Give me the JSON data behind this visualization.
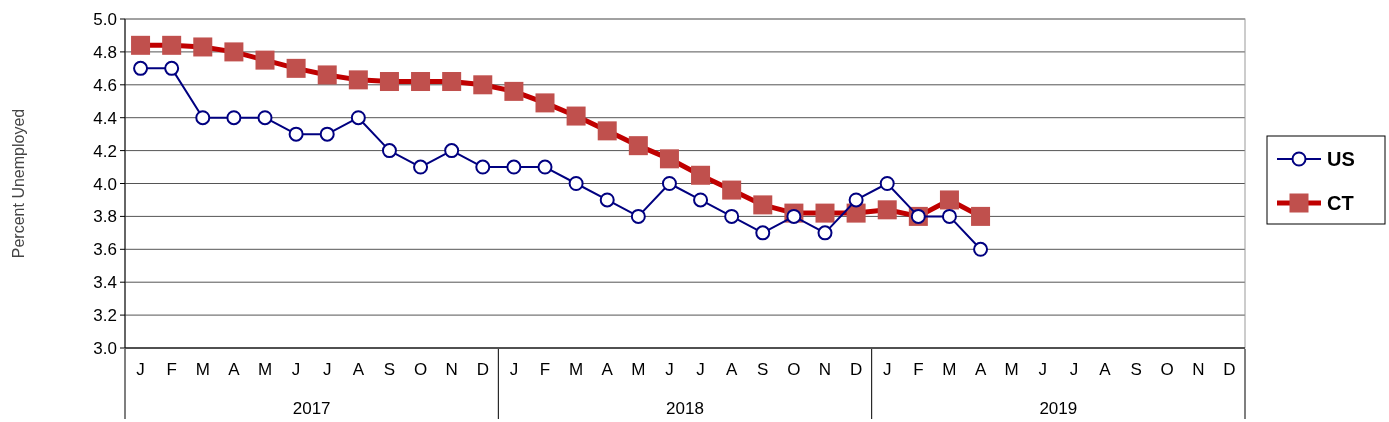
{
  "chart_data": {
    "type": "line",
    "ylabel": "Percent Unemployed",
    "categories": [
      "J",
      "F",
      "M",
      "A",
      "M",
      "J",
      "J",
      "A",
      "S",
      "O",
      "N",
      "D",
      "J",
      "F",
      "M",
      "A",
      "M",
      "J",
      "J",
      "A",
      "S",
      "O",
      "N",
      "D",
      "J",
      "F",
      "M",
      "A",
      "M",
      "J",
      "J",
      "A",
      "S",
      "O",
      "N",
      "D"
    ],
    "series": [
      {
        "name": "US",
        "color": "#000080",
        "marker": "circle",
        "values": [
          4.7,
          4.7,
          4.4,
          4.4,
          4.4,
          4.3,
          4.3,
          4.4,
          4.2,
          4.1,
          4.2,
          4.1,
          4.1,
          4.1,
          4.0,
          3.9,
          3.8,
          4.0,
          3.9,
          3.8,
          3.7,
          3.8,
          3.7,
          3.9,
          4.0,
          3.8,
          3.8,
          3.6,
          null,
          null,
          null,
          null,
          null,
          null,
          null,
          null
        ]
      },
      {
        "name": "CT",
        "color": "#c0504d",
        "marker": "square",
        "values": [
          4.84,
          4.84,
          4.83,
          4.8,
          4.75,
          4.7,
          4.66,
          4.63,
          4.62,
          4.62,
          4.62,
          4.6,
          4.56,
          4.49,
          4.41,
          4.32,
          4.23,
          4.15,
          4.05,
          3.96,
          3.87,
          3.82,
          3.82,
          3.82,
          3.84,
          3.8,
          3.9,
          3.8,
          null,
          null,
          null,
          null,
          null,
          null,
          null,
          null
        ]
      }
    ],
    "ylim": [
      3.0,
      5.0
    ],
    "yticks": [
      {
        "value": 3.0,
        "label": "3.0"
      },
      {
        "value": 3.2,
        "label": "3.2"
      },
      {
        "value": 3.4,
        "label": "3.4"
      },
      {
        "value": 3.6,
        "label": "3.6"
      },
      {
        "value": 3.8,
        "label": "3.8"
      },
      {
        "value": 4.0,
        "label": "4.0"
      },
      {
        "value": 4.2,
        "label": "4.2"
      },
      {
        "value": 4.4,
        "label": "4.4"
      },
      {
        "value": 4.6,
        "label": "4.6"
      },
      {
        "value": 4.8,
        "label": "4.8"
      },
      {
        "value": 5.0,
        "label": "5.0"
      }
    ],
    "grid": "y",
    "legend": "right",
    "line_style": "solid",
    "annotations": [
      "2017",
      "2018",
      "2019"
    ]
  }
}
